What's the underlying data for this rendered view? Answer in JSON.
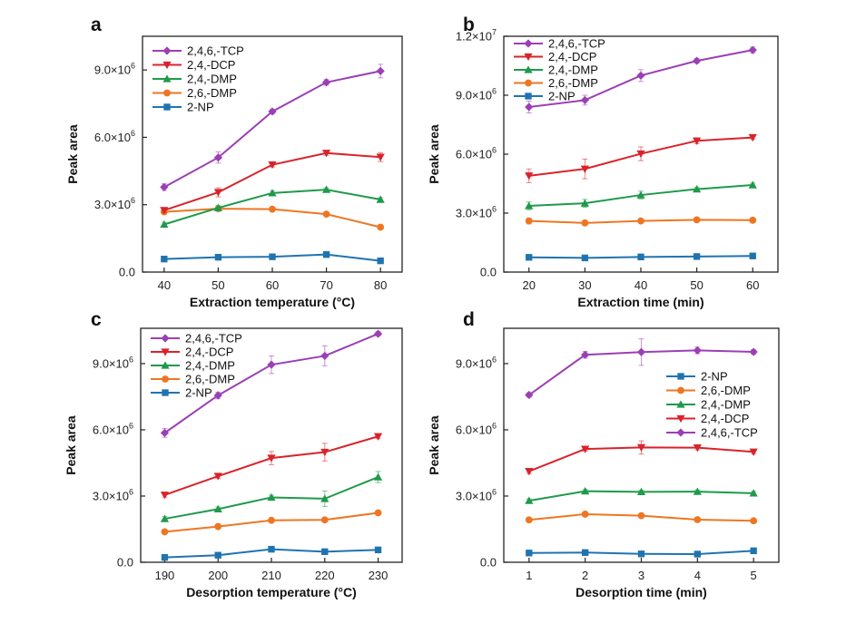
{
  "colors": {
    "TCP": "#9b3fb5",
    "DCP": "#d9232a",
    "DMP24": "#1e9a4a",
    "DMP26": "#ee7623",
    "NP": "#1f74b0"
  },
  "chart_data": [
    {
      "type": "line",
      "panel_label": "a",
      "xlabel": "Extraction temperature (°C)",
      "ylabel": "Peak area",
      "x": [
        40,
        50,
        60,
        70,
        80
      ],
      "xticks": [
        "40",
        "50",
        "60",
        "70",
        "80"
      ],
      "xlim": [
        36,
        84
      ],
      "ylim": [
        0,
        10500000
      ],
      "yticks": [
        {
          "v": 0,
          "t": "0.0"
        },
        {
          "v": 3000000,
          "t": "3.0×10⁶"
        },
        {
          "v": 6000000,
          "t": "6.0×10⁶"
        },
        {
          "v": 9000000,
          "t": "9.0×10⁶"
        }
      ],
      "legend_position": "top-left",
      "legend_order": [
        "TCP",
        "DCP",
        "DMP24",
        "DMP26",
        "NP"
      ],
      "series": [
        {
          "key": "TCP",
          "name": "2,4,6,-TCP",
          "marker": "diamond",
          "values": [
            3780000,
            5100000,
            7150000,
            8450000,
            8950000
          ],
          "errors": [
            150000,
            250000,
            100000,
            120000,
            300000
          ]
        },
        {
          "key": "DCP",
          "name": "2,4,-DCP",
          "marker": "triangle-down",
          "values": [
            2750000,
            3550000,
            4780000,
            5300000,
            5120000
          ],
          "errors": [
            100000,
            200000,
            100000,
            100000,
            200000
          ]
        },
        {
          "key": "DMP24",
          "name": "2,4,-DMP",
          "marker": "triangle-up",
          "values": [
            2120000,
            2860000,
            3520000,
            3670000,
            3230000
          ],
          "errors": [
            100000,
            100000,
            100000,
            80000,
            80000
          ]
        },
        {
          "key": "DMP26",
          "name": "2,6,-DMP",
          "marker": "circle",
          "values": [
            2680000,
            2820000,
            2800000,
            2580000,
            2000000
          ],
          "errors": [
            80000,
            80000,
            80000,
            80000,
            80000
          ]
        },
        {
          "key": "NP",
          "name": "2-NP",
          "marker": "square",
          "values": [
            580000,
            660000,
            680000,
            780000,
            500000
          ],
          "errors": [
            50000,
            50000,
            50000,
            50000,
            50000
          ]
        }
      ]
    },
    {
      "type": "line",
      "panel_label": "b",
      "xlabel": "Extraction time (min)",
      "ylabel": "Peak area",
      "x": [
        20,
        30,
        40,
        50,
        60
      ],
      "xticks": [
        "20",
        "30",
        "40",
        "50",
        "60"
      ],
      "xlim": [
        15.5,
        64.5
      ],
      "ylim": [
        0,
        12000000
      ],
      "yticks": [
        {
          "v": 0,
          "t": "0.0"
        },
        {
          "v": 3000000,
          "t": "3.0×10⁶"
        },
        {
          "v": 6000000,
          "t": "6.0×10⁶"
        },
        {
          "v": 9000000,
          "t": "9.0×10⁶"
        },
        {
          "v": 12000000,
          "t": "1.2×10⁷"
        }
      ],
      "legend_position": "top-left",
      "legend_order": [
        "TCP",
        "DCP",
        "DMP24",
        "DMP26",
        "NP"
      ],
      "series": [
        {
          "key": "TCP",
          "name": "2,4,6,-TCP",
          "marker": "diamond",
          "values": [
            8400000,
            8750000,
            10000000,
            10750000,
            11300000
          ],
          "errors": [
            300000,
            250000,
            300000,
            120000,
            150000
          ]
        },
        {
          "key": "DCP",
          "name": "2,4,-DCP",
          "marker": "triangle-down",
          "values": [
            4900000,
            5250000,
            6020000,
            6680000,
            6850000
          ],
          "errors": [
            350000,
            500000,
            350000,
            150000,
            100000
          ]
        },
        {
          "key": "DMP24",
          "name": "2,4,-DMP",
          "marker": "triangle-up",
          "values": [
            3370000,
            3500000,
            3920000,
            4220000,
            4430000
          ],
          "errors": [
            200000,
            200000,
            200000,
            100000,
            100000
          ]
        },
        {
          "key": "DMP26",
          "name": "2,6,-DMP",
          "marker": "circle",
          "values": [
            2600000,
            2500000,
            2600000,
            2660000,
            2640000
          ],
          "errors": [
            150000,
            100000,
            80000,
            80000,
            80000
          ]
        },
        {
          "key": "NP",
          "name": "2-NP",
          "marker": "square",
          "values": [
            750000,
            720000,
            770000,
            790000,
            820000
          ],
          "errors": [
            50000,
            50000,
            50000,
            50000,
            50000
          ]
        }
      ]
    },
    {
      "type": "line",
      "panel_label": "c",
      "xlabel": "Desorption temperature (°C)",
      "ylabel": "Peak area",
      "x": [
        190,
        200,
        210,
        220,
        230
      ],
      "xticks": [
        "190",
        "200",
        "210",
        "220",
        "230"
      ],
      "xlim": [
        185.5,
        234.5
      ],
      "ylim": [
        0,
        10600000
      ],
      "yticks": [
        {
          "v": 0,
          "t": "0.0"
        },
        {
          "v": 3000000,
          "t": "3.0×10⁶"
        },
        {
          "v": 6000000,
          "t": "6.0×10⁶"
        },
        {
          "v": 9000000,
          "t": "9.0×10⁶"
        }
      ],
      "legend_position": "top-left",
      "legend_order": [
        "TCP",
        "DCP",
        "DMP24",
        "DMP26",
        "NP"
      ],
      "series": [
        {
          "key": "TCP",
          "name": "2,4,6,-TCP",
          "marker": "diamond",
          "values": [
            5860000,
            7560000,
            8950000,
            9350000,
            10350000
          ],
          "errors": [
            200000,
            150000,
            400000,
            450000,
            100000
          ]
        },
        {
          "key": "DCP",
          "name": "2,4,-DCP",
          "marker": "triangle-down",
          "values": [
            3050000,
            3900000,
            4720000,
            4990000,
            5700000
          ],
          "errors": [
            100000,
            100000,
            300000,
            400000,
            100000
          ]
        },
        {
          "key": "DMP24",
          "name": "2,4,-DMP",
          "marker": "triangle-up",
          "values": [
            1970000,
            2410000,
            2940000,
            2880000,
            3860000
          ],
          "errors": [
            100000,
            100000,
            100000,
            350000,
            250000
          ]
        },
        {
          "key": "DMP26",
          "name": "2,6,-DMP",
          "marker": "circle",
          "values": [
            1380000,
            1620000,
            1900000,
            1920000,
            2240000
          ],
          "errors": [
            80000,
            80000,
            80000,
            80000,
            80000
          ]
        },
        {
          "key": "NP",
          "name": "2-NP",
          "marker": "square",
          "values": [
            220000,
            320000,
            590000,
            480000,
            560000
          ],
          "errors": [
            40000,
            40000,
            40000,
            40000,
            40000
          ]
        }
      ]
    },
    {
      "type": "line",
      "panel_label": "d",
      "xlabel": "Desorption time (min)",
      "ylabel": "Peak area",
      "x": [
        1,
        2,
        3,
        4,
        5
      ],
      "xticks": [
        "1",
        "2",
        "3",
        "4",
        "5"
      ],
      "xlim": [
        0.55,
        5.45
      ],
      "ylim": [
        0,
        10600000
      ],
      "yticks": [
        {
          "v": 0,
          "t": "0.0"
        },
        {
          "v": 3000000,
          "t": "3.0×10⁶"
        },
        {
          "v": 6000000,
          "t": "6.0×10⁶"
        },
        {
          "v": 9000000,
          "t": "9.0×10⁶"
        }
      ],
      "legend_position": "right",
      "legend_order": [
        "NP",
        "DMP26",
        "DMP24",
        "DCP",
        "TCP"
      ],
      "series": [
        {
          "key": "TCP",
          "name": "2,4,6,-TCP",
          "marker": "diamond",
          "values": [
            7580000,
            9400000,
            9520000,
            9600000,
            9530000
          ],
          "errors": [
            100000,
            150000,
            600000,
            150000,
            100000
          ]
        },
        {
          "key": "DCP",
          "name": "2,4,-DCP",
          "marker": "triangle-down",
          "values": [
            4120000,
            5130000,
            5200000,
            5190000,
            5000000
          ],
          "errors": [
            100000,
            100000,
            300000,
            100000,
            100000
          ]
        },
        {
          "key": "DMP24",
          "name": "2,4,-DMP",
          "marker": "triangle-up",
          "values": [
            2790000,
            3220000,
            3190000,
            3200000,
            3130000
          ],
          "errors": [
            80000,
            80000,
            80000,
            80000,
            80000
          ]
        },
        {
          "key": "DMP26",
          "name": "2,6,-DMP",
          "marker": "circle",
          "values": [
            1920000,
            2180000,
            2110000,
            1930000,
            1880000
          ],
          "errors": [
            60000,
            60000,
            60000,
            60000,
            60000
          ]
        },
        {
          "key": "NP",
          "name": "2-NP",
          "marker": "square",
          "values": [
            420000,
            440000,
            380000,
            370000,
            520000
          ],
          "errors": [
            40000,
            40000,
            40000,
            40000,
            40000
          ]
        }
      ]
    }
  ]
}
